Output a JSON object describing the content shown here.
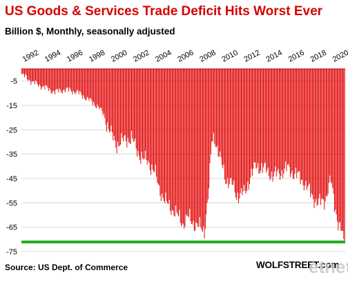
{
  "chart_data": {
    "type": "bar",
    "title": "US Goods & Services Trade Deficit Hits Worst Ever",
    "subtitle": "Billion $, Monthly, seasonally adjusted",
    "xlabel": "",
    "ylabel": "",
    "x_ticks": [
      "1992",
      "1994",
      "1996",
      "1998",
      "2000",
      "2002",
      "2004",
      "2006",
      "2008",
      "2010",
      "2012",
      "2014",
      "2016",
      "2018",
      "2020"
    ],
    "y_ticks": [
      -5,
      -15,
      -25,
      -35,
      -45,
      -55,
      -65,
      -75
    ],
    "ylim": [
      -77,
      0
    ],
    "x_range": [
      "1992-01",
      "2021-03"
    ],
    "grid": "horizontal",
    "colors": {
      "bars": "#e00000",
      "reference_line": "#22aa22",
      "title": "#d40000"
    },
    "reference_line": {
      "value": -71.1,
      "color": "#22aa22"
    },
    "series": [
      {
        "frequency": "monthly",
        "start": "1992-01",
        "keypoints": [
          [
            "1992-01",
            -2.5
          ],
          [
            "1992-06",
            -3.5
          ],
          [
            "1993-01",
            -5.5
          ],
          [
            "1994-01",
            -7.5
          ],
          [
            "1995-01",
            -9.5
          ],
          [
            "1995-06",
            -9.0
          ],
          [
            "1996-01",
            -8.5
          ],
          [
            "1997-01",
            -9.5
          ],
          [
            "1998-01",
            -12.5
          ],
          [
            "1998-12",
            -15.5
          ],
          [
            "1999-06",
            -19.0
          ],
          [
            "2000-01",
            -26.0
          ],
          [
            "2000-07",
            -31.0
          ],
          [
            "2001-06",
            -29.0
          ],
          [
            "2001-12",
            -28.5
          ],
          [
            "2002-06",
            -33.5
          ],
          [
            "2003-01",
            -37.5
          ],
          [
            "2003-06",
            -38.0
          ],
          [
            "2004-01",
            -42.5
          ],
          [
            "2004-06",
            -49.0
          ],
          [
            "2005-01",
            -55.0
          ],
          [
            "2005-06",
            -56.5
          ],
          [
            "2006-01",
            -60.0
          ],
          [
            "2006-08",
            -63.5
          ],
          [
            "2007-01",
            -61.0
          ],
          [
            "2007-08",
            -63.5
          ],
          [
            "2008-01",
            -65.0
          ],
          [
            "2008-07",
            -66.5
          ],
          [
            "2008-12",
            -49.0
          ],
          [
            "2009-03",
            -30.0
          ],
          [
            "2009-06",
            -28.0
          ],
          [
            "2009-12",
            -37.0
          ],
          [
            "2010-06",
            -45.0
          ],
          [
            "2011-01",
            -47.5
          ],
          [
            "2011-06",
            -52.0
          ],
          [
            "2012-03",
            -51.0
          ],
          [
            "2012-09",
            -44.0
          ],
          [
            "2013-03",
            -40.0
          ],
          [
            "2013-09",
            -40.5
          ],
          [
            "2014-03",
            -42.0
          ],
          [
            "2014-10",
            -44.0
          ],
          [
            "2015-06",
            -42.5
          ],
          [
            "2016-01",
            -41.0
          ],
          [
            "2016-07",
            -42.5
          ],
          [
            "2017-06",
            -46.0
          ],
          [
            "2018-01",
            -50.5
          ],
          [
            "2018-10",
            -55.5
          ],
          [
            "2019-06",
            -53.5
          ],
          [
            "2019-12",
            -46.0
          ],
          [
            "2020-04",
            -55.0
          ],
          [
            "2020-08",
            -63.5
          ],
          [
            "2020-12",
            -67.5
          ],
          [
            "2021-03",
            -71.1
          ]
        ]
      }
    ]
  },
  "footer": {
    "source": "Source: US Dept. of Commerce",
    "brand": "WOLFSTREET.com",
    "watermark": "etnet"
  }
}
